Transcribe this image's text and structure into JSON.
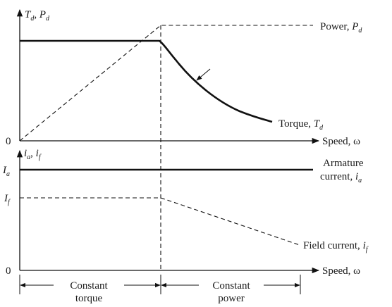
{
  "top_graph": {
    "y_axis_label": {
      "T": "T",
      "T_sub": "d",
      "sep": ", ",
      "P": "P",
      "P_sub": "d"
    },
    "x_axis_label": "Speed, ω",
    "origin_label": "0",
    "power_label": {
      "text": "Power, ",
      "var": "P",
      "sub": "d"
    },
    "torque_label": {
      "text": "Torque, ",
      "var": "T",
      "sub": "d"
    }
  },
  "bottom_graph": {
    "y_axis_label": {
      "i1": "i",
      "i1_sub": "a",
      "sep": ", ",
      "i2": "i",
      "i2_sub": "f"
    },
    "x_axis_label": "Speed, ω",
    "origin_label": "0",
    "Ia_label": {
      "var": "I",
      "sub": "a"
    },
    "If_label": {
      "var": "I",
      "sub": "f"
    },
    "armature_label": {
      "line1": "Armature",
      "line2_text": "current, ",
      "line2_var": "i",
      "line2_sub": "a"
    },
    "field_label": {
      "text": "Field current, ",
      "var": "i",
      "sub": "f"
    }
  },
  "regions": {
    "constant_torque": {
      "line1": "Constant",
      "line2": "torque"
    },
    "constant_power": {
      "line1": "Constant",
      "line2": "power"
    }
  }
}
